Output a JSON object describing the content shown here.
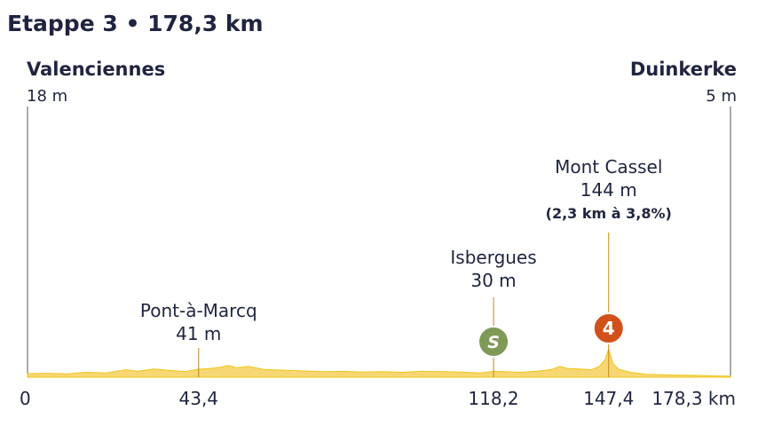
{
  "chart_data": {
    "type": "area",
    "title": "Etappe 3 • 178,3 km",
    "start": {
      "name": "Valenciennes",
      "altitude": "18 m"
    },
    "finish": {
      "name": "Duinkerke",
      "altitude": "5 m"
    },
    "x_ticks": [
      {
        "km": 0,
        "label": "0"
      },
      {
        "km": 43.4,
        "label": "43,4"
      },
      {
        "km": 118.2,
        "label": "118,2"
      },
      {
        "km": 147.4,
        "label": "147,4"
      },
      {
        "km": 178.3,
        "label": "178,3 km"
      }
    ],
    "points_of_interest": [
      {
        "km": 43.4,
        "name": "Pont-à-Marcq",
        "altitude": "41 m",
        "detail": "",
        "marker": ""
      },
      {
        "km": 118.2,
        "name": "Isbergues",
        "altitude": "30 m",
        "detail": "",
        "marker": "S",
        "marker_type": "sprint"
      },
      {
        "km": 147.4,
        "name": "Mont Cassel",
        "altitude": "144 m",
        "detail": "(2,3 km à 3,8%)",
        "marker": "4",
        "marker_type": "climb-category-4"
      }
    ],
    "profile": {
      "km": [
        0,
        5,
        10,
        15,
        20,
        25,
        28,
        32,
        36,
        40,
        43.4,
        47,
        49,
        51,
        53,
        56,
        60,
        65,
        70,
        75,
        80,
        85,
        90,
        95,
        100,
        105,
        110,
        115,
        118.2,
        121,
        125,
        130,
        133,
        135,
        137,
        140,
        143,
        145,
        146.5,
        147.4,
        148.5,
        150,
        153,
        157,
        162,
        167,
        172,
        176,
        178.3
      ],
      "altitude_m": [
        18,
        20,
        17,
        25,
        22,
        38,
        30,
        42,
        35,
        28,
        41,
        46,
        52,
        60,
        48,
        55,
        40,
        36,
        32,
        28,
        30,
        26,
        28,
        25,
        30,
        28,
        26,
        22,
        30,
        28,
        25,
        32,
        40,
        55,
        45,
        42,
        38,
        55,
        90,
        144,
        70,
        40,
        25,
        15,
        12,
        10,
        8,
        6,
        5
      ]
    },
    "colors": {
      "profile_fill": "#f7d774",
      "profile_stroke": "#f0c419",
      "sprint_marker": "#7f9a56",
      "climb_marker": "#d2511b",
      "text": "#1f2440",
      "climb_line": "#c28a16"
    }
  }
}
